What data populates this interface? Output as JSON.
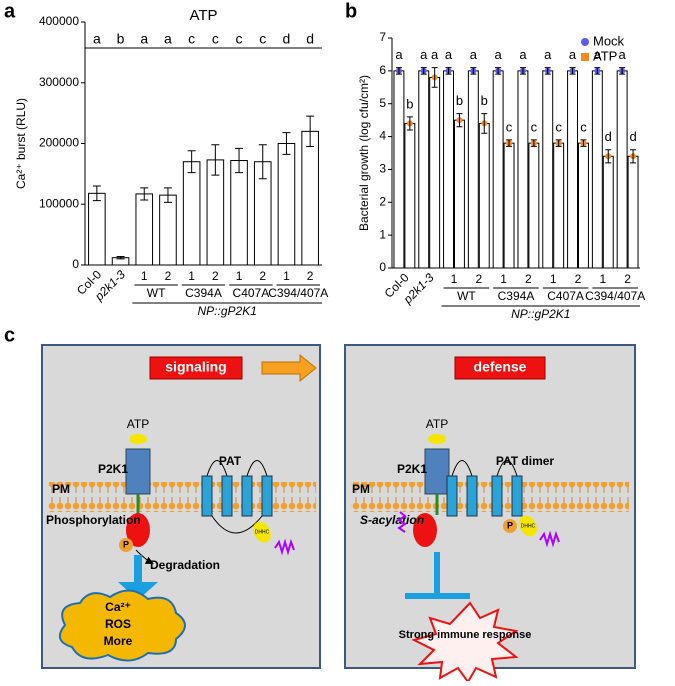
{
  "chart_data": [
    {
      "type": "bar",
      "panel_label": "a",
      "title": "ATP",
      "ylabel": "Ca²⁺ burst (RLU)",
      "categories": [
        "Col-0",
        "p2k1-3",
        "1",
        "2",
        "1",
        "2",
        "1",
        "2",
        "1",
        "2"
      ],
      "group_labels": [
        "WT",
        "C394A",
        "C407A",
        "C394/407A"
      ],
      "construct_label": "NP::gP2K1",
      "values": [
        118000,
        12000,
        117000,
        115000,
        170000,
        173000,
        172000,
        170000,
        200000,
        220000
      ],
      "errors": [
        12000,
        2000,
        10000,
        12000,
        18000,
        25000,
        20000,
        28000,
        18000,
        25000
      ],
      "significance_labels": [
        "a",
        "b",
        "a",
        "a",
        "c",
        "c",
        "c",
        "c",
        "d",
        "d"
      ],
      "color": "#ffffff",
      "ylim": [
        0,
        400000
      ],
      "yticks": [
        0,
        100000,
        200000,
        300000,
        400000
      ]
    },
    {
      "type": "bar",
      "panel_label": "b",
      "ylabel": "Bacterial growth (log cfu/cm²)",
      "categories": [
        "Col-0",
        "p2k1-3",
        "1",
        "2",
        "1",
        "2",
        "1",
        "2",
        "1",
        "2"
      ],
      "group_labels": [
        "WT",
        "C394A",
        "C407A",
        "C394/407A"
      ],
      "construct_label": "NP::gP2K1",
      "series": [
        {
          "name": "Mock",
          "color": "#5b5bf0",
          "values": [
            6.0,
            6.0,
            6.0,
            6.0,
            6.0,
            6.0,
            6.0,
            6.0,
            6.0,
            6.0
          ],
          "errors": [
            0.1,
            0.1,
            0.1,
            0.1,
            0.1,
            0.1,
            0.1,
            0.1,
            0.1,
            0.1
          ],
          "significance_labels": [
            "a",
            "a",
            "a",
            "a",
            "a",
            "a",
            "a",
            "a",
            "a",
            "a"
          ]
        },
        {
          "name": "ATP",
          "color": "#f58a1f",
          "values": [
            4.4,
            5.8,
            4.5,
            4.4,
            3.8,
            3.8,
            3.8,
            3.8,
            3.4,
            3.4
          ],
          "errors": [
            0.2,
            0.3,
            0.2,
            0.3,
            0.1,
            0.1,
            0.1,
            0.1,
            0.2,
            0.2
          ],
          "significance_labels": [
            "b",
            "a",
            "b",
            "b",
            "c",
            "c",
            "c",
            "c",
            "d",
            "d"
          ]
        }
      ],
      "ylim": [
        0,
        7
      ],
      "yticks": [
        0,
        1,
        2,
        3,
        4,
        5,
        6,
        7
      ],
      "legend": "top-right"
    }
  ],
  "diagram": {
    "panel_label": "c",
    "left": {
      "title": "signaling",
      "ligand": "ATP",
      "receptor": "P2K1",
      "enzyme": "PAT",
      "membrane": "PM",
      "modification": "Phosphorylation",
      "phospho": "P",
      "fate": "Degradation",
      "dhhc": "DHHC",
      "outputs": [
        "Ca²⁺",
        "ROS",
        "More"
      ]
    },
    "right": {
      "title": "defense",
      "ligand": "ATP",
      "receptor": "P2K1",
      "enzyme": "PAT dimer",
      "membrane": "PM",
      "modification": "S-acylation",
      "phospho": "P",
      "dhhc": "DHHC",
      "output": "Strong immune response"
    }
  }
}
